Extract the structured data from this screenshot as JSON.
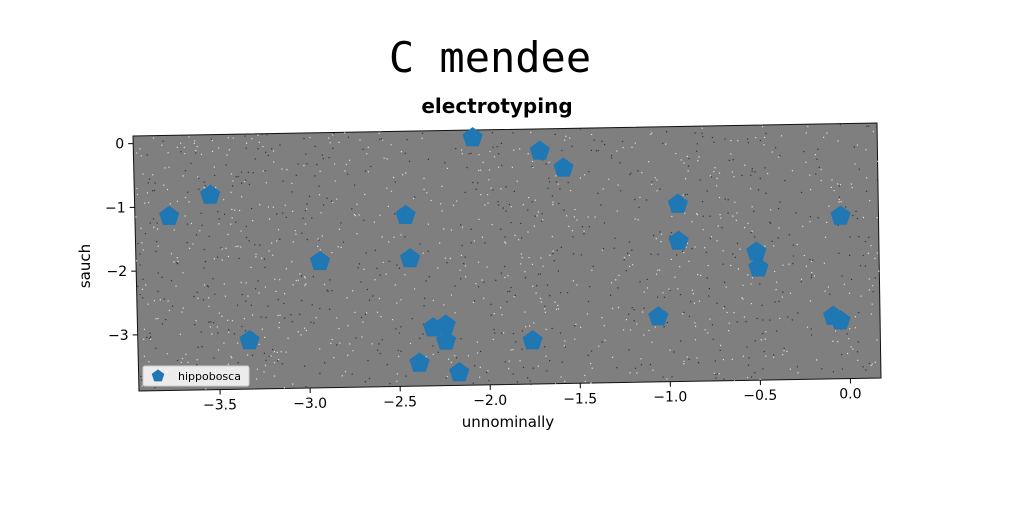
{
  "chart_data": {
    "type": "scatter",
    "title": "C mendee",
    "subtitle": "electrotyping",
    "xlabel": "unnominally",
    "ylabel": "sauch",
    "xlim": [
      -3.95,
      0.17
    ],
    "ylim": [
      -3.88,
      0.12
    ],
    "xticks": [
      -3.5,
      -3.0,
      -2.5,
      -2.0,
      -1.5,
      -1.0,
      -0.5,
      0.0
    ],
    "xtick_labels": [
      "−3.5",
      "−3.0",
      "−2.5",
      "−2.0",
      "−1.5",
      "−1.0",
      "−0.5",
      "0.0"
    ],
    "yticks": [
      0,
      -1,
      -2,
      -3
    ],
    "ytick_labels": [
      "0",
      "−1",
      "−2",
      "−3"
    ],
    "grid": false,
    "legend_position": "lower-left",
    "background_color": "#7f7f7f",
    "marker": "pentagon",
    "series": [
      {
        "name": "hippobosca",
        "color": "#1f77b4",
        "points": [
          {
            "x": -3.76,
            "y": -1.15
          },
          {
            "x": -3.53,
            "y": -0.83
          },
          {
            "x": -3.33,
            "y": -3.12
          },
          {
            "x": -2.93,
            "y": -1.9
          },
          {
            "x": -2.45,
            "y": -1.2
          },
          {
            "x": -2.43,
            "y": -1.88
          },
          {
            "x": -2.39,
            "y": -3.52
          },
          {
            "x": -2.31,
            "y": -2.97
          },
          {
            "x": -2.24,
            "y": -2.93
          },
          {
            "x": -2.24,
            "y": -3.18
          },
          {
            "x": -2.17,
            "y": -3.68
          },
          {
            "x": -2.07,
            "y": 0.0
          },
          {
            "x": -1.76,
            "y": -3.2
          },
          {
            "x": -1.7,
            "y": -0.23
          },
          {
            "x": -1.57,
            "y": -0.5
          },
          {
            "x": -1.06,
            "y": -2.86
          },
          {
            "x": -0.94,
            "y": -1.1
          },
          {
            "x": -0.94,
            "y": -1.68
          },
          {
            "x": -0.51,
            "y": -1.87
          },
          {
            "x": -0.5,
            "y": -2.12
          },
          {
            "x": -0.09,
            "y": -2.9
          },
          {
            "x": -0.05,
            "y": -2.97
          },
          {
            "x": -0.04,
            "y": -1.33
          }
        ]
      }
    ]
  }
}
